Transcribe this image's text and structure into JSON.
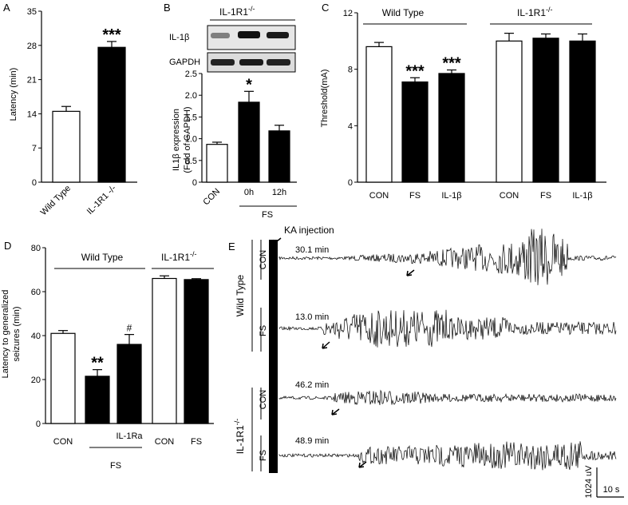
{
  "chart_data": [
    {
      "panel": "A",
      "type": "bar",
      "categories": [
        "Wild Type",
        "IL-1R1 -/-"
      ],
      "values": [
        14.5,
        27.6
      ],
      "errors": [
        1.0,
        1.2
      ],
      "fills": [
        "#ffffff",
        "#000000"
      ],
      "significance": [
        "",
        "***"
      ],
      "ylabel": "Latency (min)",
      "ylim": [
        0,
        35
      ],
      "yticks": [
        0,
        7,
        14,
        21,
        28,
        35
      ]
    },
    {
      "panel": "B",
      "type": "bar",
      "header": "IL-1R1",
      "header_sup": "-/-",
      "blot_labels": [
        "IL-1β",
        "GAPDH"
      ],
      "categories": [
        "CON",
        "0h",
        "12h"
      ],
      "values": [
        0.87,
        1.84,
        1.18
      ],
      "errors": [
        0.05,
        0.25,
        0.13
      ],
      "fills": [
        "#ffffff",
        "#000000",
        "#000000"
      ],
      "significance": [
        "",
        "*",
        ""
      ],
      "group_label": "FS",
      "ylabel_lines": [
        "IL1β expression",
        "(Fold of GAPDH)"
      ],
      "ylim": [
        0,
        2.5
      ],
      "yticks": [
        "0",
        "0.5",
        "1.0",
        "1.5",
        "2.0",
        "2.5"
      ]
    },
    {
      "panel": "C",
      "type": "bar",
      "group_labels": [
        "Wild Type",
        "IL-1R1"
      ],
      "group_sup": "-/-",
      "categories": [
        "CON",
        "FS",
        "IL-1β",
        "CON",
        "FS",
        "IL-1β"
      ],
      "values": [
        9.6,
        7.1,
        7.7,
        10.0,
        10.2,
        10.0
      ],
      "errors": [
        0.3,
        0.3,
        0.25,
        0.55,
        0.3,
        0.5
      ],
      "fills": [
        "#ffffff",
        "#000000",
        "#000000",
        "#ffffff",
        "#000000",
        "#000000"
      ],
      "significance": [
        "",
        "***",
        "***",
        "",
        "",
        ""
      ],
      "ylabel": "Threshold(mA)",
      "ylim": [
        0,
        12
      ],
      "yticks": [
        0,
        4,
        8,
        12
      ]
    },
    {
      "panel": "D",
      "type": "bar",
      "group_labels": [
        "Wild Type",
        "IL-1R1"
      ],
      "group_sup": "-/-",
      "categories": [
        "CON",
        "",
        "IL-1Ra",
        "CON",
        "FS"
      ],
      "values": [
        41.0,
        21.5,
        36.0,
        66.0,
        65.5
      ],
      "errors": [
        1.3,
        3.0,
        4.5,
        1.2,
        0.4
      ],
      "fills": [
        "#ffffff",
        "#000000",
        "#000000",
        "#ffffff",
        "#000000"
      ],
      "significance": [
        "",
        "**",
        "#",
        "",
        ""
      ],
      "fs_label": "FS",
      "ylabel_lines": [
        "Latency to generalized",
        "seizures (min)"
      ],
      "ylim": [
        0,
        80
      ],
      "yticks": [
        0,
        20,
        40,
        60,
        80
      ]
    }
  ],
  "panel_e": {
    "panel": "E",
    "annotation": "KA injection",
    "groups": [
      "Wild Type",
      "IL-1R1"
    ],
    "group_sup": "-/-",
    "traces": [
      {
        "condition": "CON",
        "time": "30.1 min"
      },
      {
        "condition": "FS",
        "time": "13.0 min"
      },
      {
        "condition": "CON",
        "time": "46.2 min"
      },
      {
        "condition": "FS",
        "time": "48.9 min"
      }
    ],
    "scale_voltage": "1024 uV",
    "scale_time": "10 s"
  }
}
